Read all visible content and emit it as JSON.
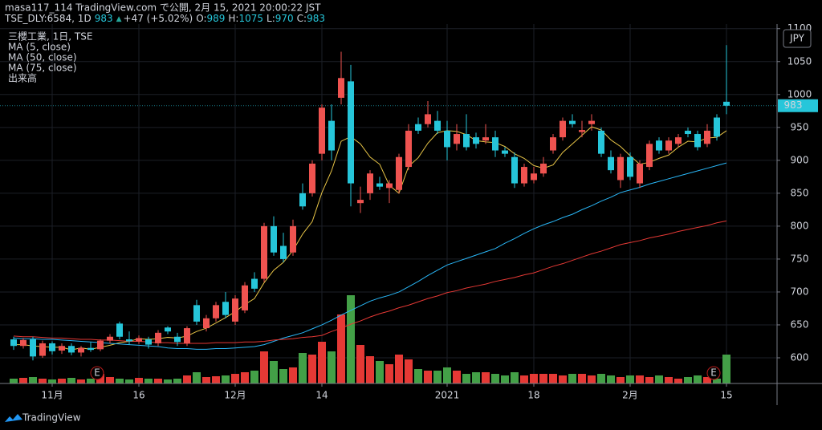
{
  "header": {
    "title": "masa117_114 TradingView.com で公開, 2月 15, 2021 20:00:22 JST",
    "symbol": "TSE_DLY:6584, 1D",
    "last": "983",
    "arrow": "▲",
    "change": "+47 (+5.02%)",
    "ohlc": [
      {
        "label": "O:",
        "value": "989"
      },
      {
        "label": "H:",
        "value": "1075"
      },
      {
        "label": "L:",
        "value": "970"
      },
      {
        "label": "C:",
        "value": "983"
      }
    ]
  },
  "footer": {
    "brand": "TradingView"
  },
  "chart_data": {
    "type": "candlestick",
    "title": "三櫻工業, 1日, TSE",
    "categories": [
      null,
      null,
      null,
      null,
      "11月",
      null,
      null,
      null,
      null,
      null,
      null,
      null,
      null,
      "16",
      null,
      null,
      null,
      null,
      null,
      null,
      null,
      null,
      null,
      "12月",
      null,
      null,
      null,
      null,
      null,
      null,
      null,
      null,
      "14",
      null,
      null,
      null,
      null,
      null,
      null,
      null,
      null,
      null,
      null,
      null,
      null,
      "2021",
      null,
      null,
      null,
      null,
      null,
      null,
      null,
      null,
      "18",
      null,
      null,
      null,
      null,
      null,
      null,
      null,
      null,
      null,
      "2月",
      null,
      null,
      null,
      null,
      null,
      null,
      null,
      null,
      null,
      "15"
    ],
    "open": [
      628,
      618,
      628,
      603,
      622,
      611,
      618,
      608,
      615,
      613,
      626,
      652,
      628,
      625,
      628,
      622,
      646,
      632,
      622,
      680,
      645,
      660,
      685,
      655,
      672,
      720,
      720,
      800,
      770,
      760,
      850,
      850,
      910,
      960,
      995,
      1020,
      835,
      850,
      865,
      858,
      855,
      890,
      955,
      955,
      960,
      945,
      925,
      940,
      935,
      930,
      935,
      915,
      905,
      865,
      870,
      880,
      915,
      935,
      960,
      943,
      955,
      945,
      905,
      870,
      905,
      865,
      890,
      930,
      915,
      925,
      945,
      940,
      925,
      965,
      989
    ],
    "high": [
      632,
      630,
      632,
      626,
      625,
      622,
      622,
      618,
      624,
      628,
      636,
      655,
      640,
      634,
      632,
      642,
      648,
      638,
      648,
      688,
      665,
      685,
      700,
      695,
      715,
      730,
      805,
      815,
      790,
      810,
      865,
      900,
      985,
      985,
      1065,
      1045,
      860,
      885,
      875,
      870,
      910,
      955,
      965,
      990,
      975,
      960,
      955,
      970,
      942,
      955,
      945,
      920,
      912,
      895,
      890,
      905,
      940,
      965,
      970,
      960,
      970,
      950,
      915,
      910,
      912,
      900,
      930,
      935,
      935,
      940,
      950,
      945,
      955,
      970,
      1075
    ],
    "low": [
      612,
      614,
      596,
      600,
      605,
      606,
      604,
      602,
      609,
      610,
      622,
      628,
      620,
      621,
      614,
      618,
      636,
      618,
      618,
      650,
      640,
      655,
      660,
      650,
      668,
      700,
      715,
      755,
      745,
      755,
      825,
      845,
      900,
      900,
      985,
      830,
      820,
      840,
      855,
      835,
      850,
      885,
      940,
      950,
      940,
      900,
      915,
      915,
      918,
      925,
      905,
      905,
      858,
      860,
      865,
      875,
      910,
      930,
      950,
      935,
      945,
      905,
      880,
      858,
      870,
      858,
      885,
      910,
      910,
      920,
      935,
      915,
      920,
      930,
      970
    ],
    "close": [
      618,
      627,
      602,
      622,
      610,
      618,
      608,
      615,
      612,
      626,
      632,
      632,
      625,
      630,
      620,
      638,
      640,
      624,
      645,
      655,
      660,
      680,
      665,
      690,
      710,
      705,
      800,
      760,
      750,
      800,
      830,
      895,
      980,
      915,
      1025,
      865,
      840,
      880,
      860,
      865,
      905,
      945,
      945,
      970,
      945,
      920,
      940,
      920,
      925,
      935,
      915,
      910,
      865,
      890,
      880,
      895,
      935,
      960,
      955,
      946,
      960,
      910,
      885,
      905,
      875,
      895,
      925,
      915,
      930,
      935,
      940,
      920,
      945,
      936,
      983
    ],
    "volume": [
      6000,
      7000,
      8000,
      6000,
      5000,
      6000,
      7000,
      5000,
      6000,
      12000,
      8000,
      6000,
      5000,
      7000,
      6000,
      6000,
      5000,
      6000,
      10000,
      14000,
      8000,
      9000,
      10000,
      12000,
      14000,
      16000,
      40000,
      28000,
      18000,
      20000,
      38000,
      36000,
      52000,
      40000,
      86000,
      110000,
      48000,
      34000,
      28000,
      24000,
      36000,
      30000,
      18000,
      16000,
      16000,
      20000,
      16000,
      12000,
      14000,
      14000,
      12000,
      10000,
      14000,
      10000,
      12000,
      12000,
      12000,
      10000,
      12000,
      12000,
      10000,
      12000,
      10000,
      8000,
      10000,
      10000,
      8000,
      10000,
      8000,
      6000,
      8000,
      10000,
      8000,
      6000,
      36000
    ],
    "volume_name": "出来高",
    "up_color": "#ef5350",
    "down_color": "#26c6da",
    "volume_up_color": "#e53935",
    "volume_down_color": "#43a047",
    "series": [
      {
        "name": "MA (5, close)",
        "color": "#e8c547",
        "values": [
          620,
          620,
          618,
          617,
          616,
          616,
          612,
          615,
          613,
          616,
          619,
          623,
          625,
          629,
          628,
          629,
          631,
          630,
          633,
          640,
          645,
          653,
          661,
          670,
          681,
          690,
          714,
          733,
          745,
          763,
          788,
          807,
          851,
          884,
          929,
          936,
          925,
          905,
          894,
          862,
          850,
          891,
          904,
          926,
          942,
          945,
          944,
          939,
          930,
          928,
          927,
          921,
          910,
          903,
          892,
          888,
          893,
          912,
          925,
          938,
          951,
          946,
          931,
          921,
          907,
          894,
          897,
          903,
          908,
          920,
          929,
          928,
          934,
          935,
          945
        ]
      },
      {
        "name": "MA (50, close)",
        "color": "#29b6f6",
        "values": [
          630,
          629,
          629,
          628,
          628,
          627,
          626,
          625,
          624,
          623,
          622,
          621,
          620,
          619,
          618,
          617,
          615,
          614,
          614,
          613,
          613,
          614,
          614,
          615,
          616,
          617,
          620,
          625,
          630,
          634,
          638,
          644,
          650,
          657,
          665,
          672,
          679,
          686,
          691,
          695,
          700,
          708,
          716,
          725,
          733,
          741,
          746,
          751,
          756,
          761,
          766,
          774,
          781,
          789,
          796,
          802,
          807,
          813,
          818,
          825,
          831,
          838,
          844,
          851,
          855,
          859,
          864,
          868,
          872,
          876,
          880,
          884,
          888,
          892,
          896
        ]
      },
      {
        "name": "MA (75, close)",
        "color": "#e53935",
        "values": [
          633,
          632,
          632,
          631,
          630,
          630,
          629,
          628,
          628,
          627,
          627,
          626,
          625,
          625,
          624,
          623,
          623,
          622,
          622,
          622,
          622,
          623,
          623,
          623,
          624,
          624,
          625,
          627,
          628,
          629,
          631,
          632,
          634,
          640,
          645,
          651,
          656,
          662,
          667,
          671,
          676,
          680,
          685,
          690,
          694,
          699,
          702,
          706,
          709,
          712,
          716,
          719,
          722,
          726,
          729,
          734,
          739,
          743,
          748,
          753,
          758,
          762,
          767,
          772,
          775,
          778,
          782,
          785,
          788,
          792,
          795,
          798,
          801,
          805,
          808
        ]
      }
    ],
    "ylim": [
      561,
      1107
    ],
    "yticks": [
      600,
      650,
      700,
      750,
      800,
      850,
      900,
      950,
      1000,
      1050,
      1100
    ],
    "grid": true,
    "currency": "JPY",
    "event_label": "E"
  }
}
